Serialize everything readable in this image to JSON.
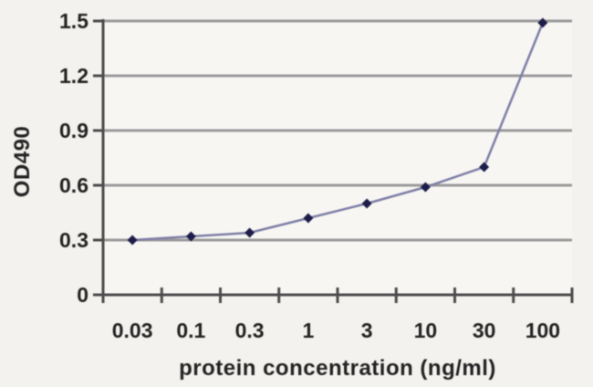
{
  "chart_data": {
    "type": "line",
    "title": "",
    "xlabel": "protein concentration (ng/ml)",
    "ylabel": "OD490",
    "x_scale": "log-category",
    "categories": [
      "0.03",
      "0.1",
      "0.3",
      "1",
      "3",
      "10",
      "30",
      "100"
    ],
    "series": [
      {
        "name": "OD490",
        "values": [
          0.3,
          0.32,
          0.34,
          0.42,
          0.5,
          0.59,
          0.7,
          1.49
        ]
      }
    ],
    "ylim": [
      0,
      1.5
    ],
    "y_ticks": [
      0,
      0.3,
      0.6,
      0.9,
      1.2,
      1.5
    ],
    "y_tick_labels": [
      "0",
      "0.3",
      "0.6",
      "0.9",
      "1.2",
      "1.5"
    ],
    "grid": true,
    "legend_position": "none",
    "marker": "diamond",
    "colors": {
      "line": "#7e7ea6",
      "marker": "#1d1d49",
      "gridline": "#9a9a9a",
      "axis": "#4c4c4c",
      "text": "#222222",
      "background": "#f4f2ef",
      "plot_background": "#f7f6f3"
    }
  }
}
